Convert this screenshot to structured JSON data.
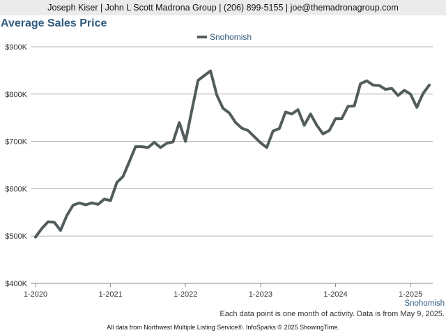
{
  "header": {
    "contact_line": "Joseph Kiser | John L Scott Madrona Group | (206) 899-5155 | joe@themadronagroup.com"
  },
  "colors": {
    "title": "#2f5a7d",
    "series_line": "#525c5c",
    "grid": "#b0b0b0",
    "header_bg": "#ebebeb"
  },
  "chart_data": {
    "type": "line",
    "title": "Average Sales Price",
    "xlabel": "",
    "ylabel": "",
    "ylim": [
      400000,
      900000
    ],
    "y_ticks": [
      400000,
      500000,
      600000,
      700000,
      800000,
      900000
    ],
    "y_tick_labels": [
      "$400K",
      "$500K",
      "$600K",
      "$700K",
      "$800K",
      "$900K"
    ],
    "x_tick_labels": [
      "1-2020",
      "1-2021",
      "1-2022",
      "1-2023",
      "1-2024",
      "1-2025"
    ],
    "legend_position": "top-center",
    "grid": true,
    "series": [
      {
        "name": "Snohomish",
        "x": [
          "1-2020",
          "2-2020",
          "3-2020",
          "4-2020",
          "5-2020",
          "6-2020",
          "7-2020",
          "8-2020",
          "9-2020",
          "10-2020",
          "11-2020",
          "12-2020",
          "1-2021",
          "2-2021",
          "3-2021",
          "4-2021",
          "5-2021",
          "6-2021",
          "7-2021",
          "8-2021",
          "9-2021",
          "10-2021",
          "11-2021",
          "12-2021",
          "1-2022",
          "2-2022",
          "3-2022",
          "4-2022",
          "5-2022",
          "6-2022",
          "7-2022",
          "8-2022",
          "9-2022",
          "10-2022",
          "11-2022",
          "12-2022",
          "1-2023",
          "2-2023",
          "3-2023",
          "4-2023",
          "5-2023",
          "6-2023",
          "7-2023",
          "8-2023",
          "9-2023",
          "10-2023",
          "11-2023",
          "12-2023",
          "1-2024",
          "2-2024",
          "3-2024",
          "4-2024",
          "5-2024",
          "6-2024",
          "7-2024",
          "8-2024",
          "9-2024",
          "10-2024",
          "11-2024",
          "12-2024",
          "1-2025",
          "2-2025",
          "3-2025",
          "4-2025"
        ],
        "values": [
          498000,
          516000,
          530000,
          529000,
          512000,
          543000,
          565000,
          570000,
          566000,
          570000,
          567000,
          578000,
          575000,
          613000,
          626000,
          657000,
          689000,
          689000,
          687000,
          698000,
          687000,
          696000,
          699000,
          740000,
          700000,
          765000,
          829000,
          839000,
          849000,
          798000,
          770000,
          760000,
          740000,
          728000,
          723000,
          710000,
          697000,
          687000,
          722000,
          727000,
          762000,
          758000,
          767000,
          734000,
          758000,
          734000,
          716000,
          723000,
          748000,
          748000,
          774000,
          775000,
          822000,
          828000,
          819000,
          818000,
          810000,
          812000,
          797000,
          808000,
          800000,
          772000,
          801000,
          819000
        ]
      }
    ]
  },
  "footer": {
    "series_label": "Snohomish",
    "note": "Each data point is one month of activity. Data is from May 9, 2025.",
    "source": "All data from Northwest Multiple Listing Service®. InfoSparks © 2025 ShowingTime."
  }
}
